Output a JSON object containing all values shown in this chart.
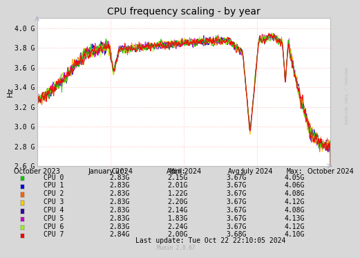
{
  "title": "CPU frequency scaling - by year",
  "ylabel": "Hz",
  "yticks": [
    "2.6 G",
    "2.8 G",
    "3.0 G",
    "3.2 G",
    "3.4 G",
    "3.6 G",
    "3.8 G",
    "4.0 G"
  ],
  "ytick_vals": [
    2600000000,
    2800000000,
    3000000000,
    3200000000,
    3400000000,
    3600000000,
    3800000000,
    4000000000
  ],
  "ylim": [
    2600000000,
    4100000000
  ],
  "xtick_labels": [
    "October 2023",
    "January 2024",
    "April 2024",
    "July 2024",
    "October 2024"
  ],
  "background_color": "#d8d8d8",
  "plot_bg_color": "#ffffff",
  "grid_color": "#ffbbbb",
  "border_color": "#bbbbbb",
  "cpu_colors": [
    "#00cc00",
    "#0000ee",
    "#ff6600",
    "#ffcc00",
    "#330099",
    "#cc00cc",
    "#99ff00",
    "#ff0000"
  ],
  "cpu_labels": [
    "CPU 0",
    "CPU 1",
    "CPU 2",
    "CPU 3",
    "CPU 4",
    "CPU 5",
    "CPU 6",
    "CPU 7"
  ],
  "legend_headers": [
    "Cur:",
    "Min:",
    "Avg:",
    "Max:"
  ],
  "legend_cur": [
    "2.83G",
    "2.83G",
    "2.83G",
    "2.83G",
    "2.83G",
    "2.83G",
    "2.83G",
    "2.84G"
  ],
  "legend_min": [
    "2.15G",
    "2.01G",
    "1.22G",
    "2.20G",
    "2.14G",
    "1.83G",
    "2.24G",
    "2.00G"
  ],
  "legend_avg": [
    "3.67G",
    "3.67G",
    "3.67G",
    "3.67G",
    "3.67G",
    "3.67G",
    "3.67G",
    "3.68G"
  ],
  "legend_max": [
    "4.05G",
    "4.06G",
    "4.08G",
    "4.12G",
    "4.08G",
    "4.13G",
    "4.12G",
    "4.10G"
  ],
  "last_update": "Last update: Tue Oct 22 22:10:05 2024",
  "munin_version": "Munin 2.0.67",
  "rrdtool_text": "RRDTOOL / TOBI OETIKER",
  "title_fontsize": 10,
  "axis_fontsize": 7,
  "legend_fontsize": 7,
  "n_points": 1200
}
